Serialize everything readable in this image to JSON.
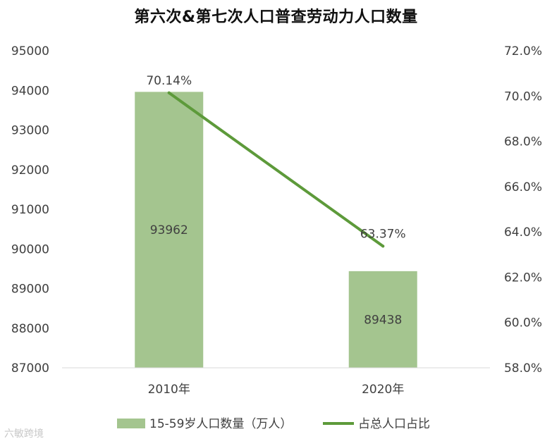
{
  "watermark": "六敏跨境",
  "chart_data": {
    "type": "bar",
    "title": "第六次&第七次人口普查劳动力人口数量",
    "categories": [
      "2010年",
      "2020年"
    ],
    "series": [
      {
        "name": "15-59岁人口数量（万人）",
        "type": "bar",
        "axis": "left",
        "color": "#a4c58f",
        "values": [
          93962,
          89438
        ],
        "data_labels": [
          "93962",
          "89438"
        ]
      },
      {
        "name": "占总人口占比",
        "type": "line",
        "axis": "right",
        "color": "#5d9a3a",
        "values": [
          70.14,
          63.37
        ],
        "data_labels": [
          "70.14%",
          "63.37%"
        ]
      }
    ],
    "y_left": {
      "min": 87000,
      "max": 95000,
      "ticks": [
        87000,
        88000,
        89000,
        90000,
        91000,
        92000,
        93000,
        94000,
        95000
      ]
    },
    "y_right": {
      "min": 58.0,
      "max": 72.0,
      "ticks": [
        "58.0%",
        "60.0%",
        "62.0%",
        "64.0%",
        "66.0%",
        "68.0%",
        "70.0%",
        "72.0%"
      ],
      "tick_values": [
        58,
        60,
        62,
        64,
        66,
        68,
        70,
        72
      ]
    },
    "grid": false,
    "legend_position": "bottom"
  }
}
